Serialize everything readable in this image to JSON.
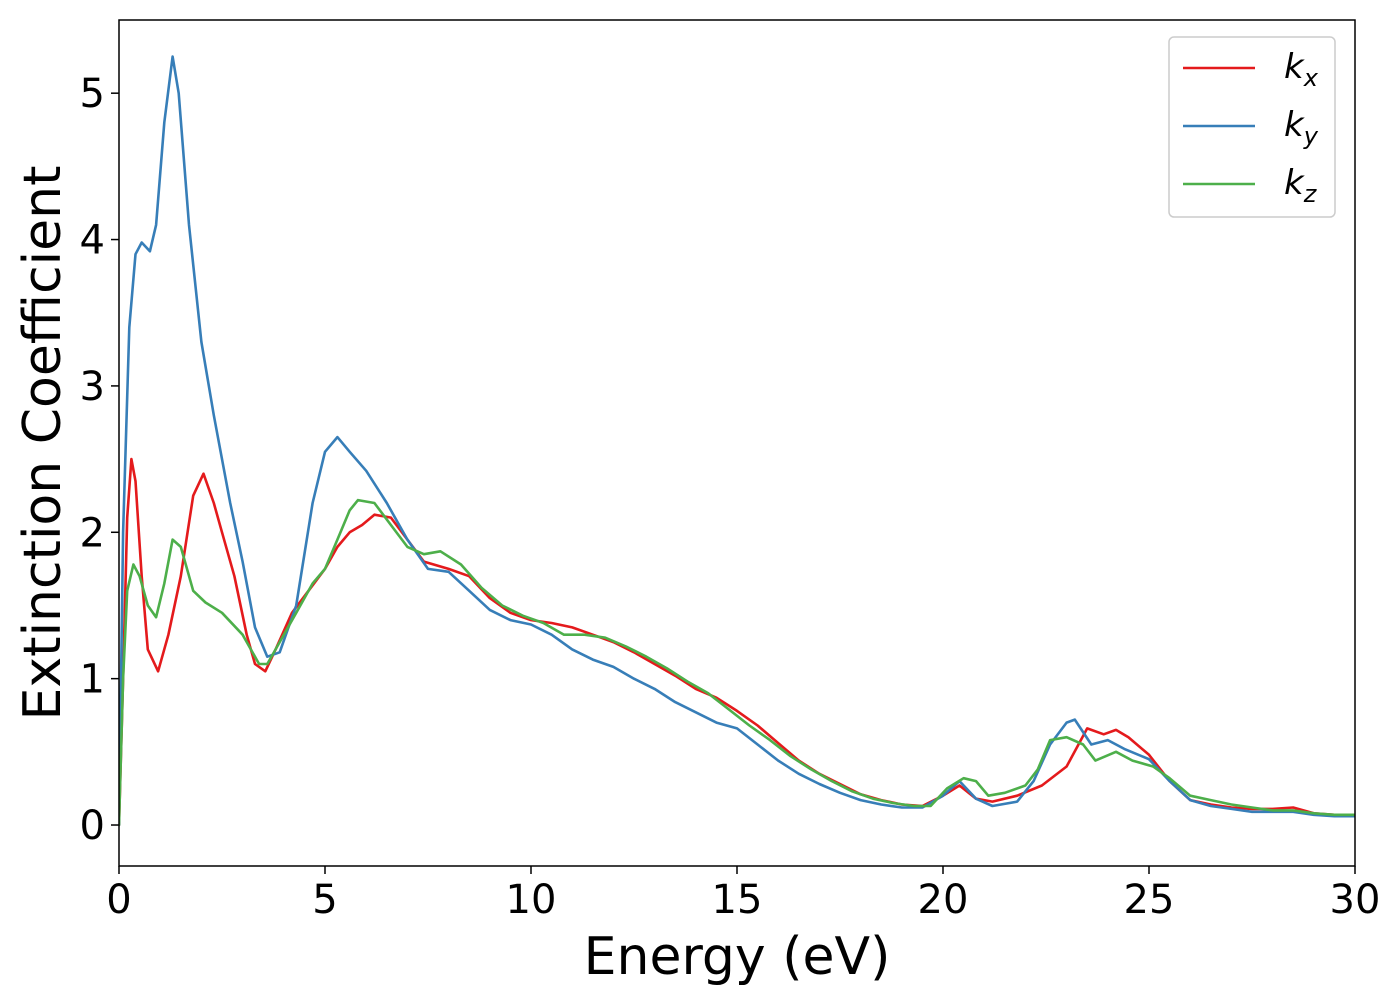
{
  "chart_data": {
    "type": "line",
    "title": "",
    "xlabel": "Energy (eV)",
    "ylabel": "Extinction Coefficient",
    "xlim": [
      0,
      30
    ],
    "ylim": [
      -0.28,
      5.5
    ],
    "xticks": [
      0,
      5,
      10,
      15,
      20,
      25,
      30
    ],
    "yticks": [
      0,
      1,
      2,
      3,
      4,
      5
    ],
    "grid": false,
    "legend_position": "top-right",
    "series": [
      {
        "name": "k",
        "subscript": "x",
        "color": "#e41a1c",
        "points": [
          [
            0,
            0
          ],
          [
            0.1,
            1.0
          ],
          [
            0.2,
            2.1
          ],
          [
            0.3,
            2.5
          ],
          [
            0.4,
            2.35
          ],
          [
            0.55,
            1.7
          ],
          [
            0.7,
            1.2
          ],
          [
            0.95,
            1.05
          ],
          [
            1.2,
            1.3
          ],
          [
            1.5,
            1.7
          ],
          [
            1.8,
            2.25
          ],
          [
            2.05,
            2.4
          ],
          [
            2.3,
            2.2
          ],
          [
            2.5,
            2.0
          ],
          [
            2.8,
            1.7
          ],
          [
            3.1,
            1.3
          ],
          [
            3.3,
            1.1
          ],
          [
            3.55,
            1.05
          ],
          [
            3.8,
            1.2
          ],
          [
            4.2,
            1.45
          ],
          [
            4.6,
            1.6
          ],
          [
            5.0,
            1.75
          ],
          [
            5.3,
            1.9
          ],
          [
            5.6,
            2.0
          ],
          [
            5.9,
            2.05
          ],
          [
            6.2,
            2.12
          ],
          [
            6.6,
            2.1
          ],
          [
            7.0,
            1.95
          ],
          [
            7.4,
            1.8
          ],
          [
            8.0,
            1.75
          ],
          [
            8.5,
            1.7
          ],
          [
            9.0,
            1.55
          ],
          [
            9.5,
            1.45
          ],
          [
            10.0,
            1.4
          ],
          [
            10.5,
            1.38
          ],
          [
            11.0,
            1.35
          ],
          [
            11.5,
            1.3
          ],
          [
            12.0,
            1.25
          ],
          [
            12.5,
            1.18
          ],
          [
            13.0,
            1.1
          ],
          [
            13.5,
            1.02
          ],
          [
            14.0,
            0.93
          ],
          [
            14.5,
            0.87
          ],
          [
            15.0,
            0.78
          ],
          [
            15.5,
            0.68
          ],
          [
            16.0,
            0.56
          ],
          [
            16.5,
            0.44
          ],
          [
            17.0,
            0.35
          ],
          [
            17.5,
            0.28
          ],
          [
            18.0,
            0.21
          ],
          [
            18.5,
            0.17
          ],
          [
            19.0,
            0.14
          ],
          [
            19.5,
            0.13
          ],
          [
            20.0,
            0.2
          ],
          [
            20.4,
            0.27
          ],
          [
            20.8,
            0.18
          ],
          [
            21.2,
            0.16
          ],
          [
            21.8,
            0.2
          ],
          [
            22.4,
            0.27
          ],
          [
            23.0,
            0.4
          ],
          [
            23.5,
            0.66
          ],
          [
            23.9,
            0.62
          ],
          [
            24.2,
            0.65
          ],
          [
            24.5,
            0.6
          ],
          [
            25.0,
            0.48
          ],
          [
            25.5,
            0.3
          ],
          [
            26.0,
            0.17
          ],
          [
            26.5,
            0.14
          ],
          [
            27.0,
            0.12
          ],
          [
            27.5,
            0.11
          ],
          [
            28.0,
            0.11
          ],
          [
            28.5,
            0.12
          ],
          [
            29.0,
            0.08
          ],
          [
            29.5,
            0.07
          ],
          [
            30.0,
            0.07
          ]
        ]
      },
      {
        "name": "k",
        "subscript": "y",
        "color": "#377eb8",
        "points": [
          [
            0,
            0
          ],
          [
            0.1,
            2.0
          ],
          [
            0.25,
            3.4
          ],
          [
            0.4,
            3.9
          ],
          [
            0.55,
            3.98
          ],
          [
            0.75,
            3.92
          ],
          [
            0.9,
            4.1
          ],
          [
            1.1,
            4.8
          ],
          [
            1.3,
            5.25
          ],
          [
            1.45,
            5.0
          ],
          [
            1.7,
            4.1
          ],
          [
            2.0,
            3.3
          ],
          [
            2.3,
            2.8
          ],
          [
            2.7,
            2.2
          ],
          [
            3.0,
            1.8
          ],
          [
            3.3,
            1.35
          ],
          [
            3.6,
            1.15
          ],
          [
            3.9,
            1.18
          ],
          [
            4.3,
            1.5
          ],
          [
            4.7,
            2.2
          ],
          [
            5.0,
            2.55
          ],
          [
            5.3,
            2.65
          ],
          [
            5.6,
            2.55
          ],
          [
            6.0,
            2.42
          ],
          [
            6.5,
            2.2
          ],
          [
            7.0,
            1.95
          ],
          [
            7.5,
            1.75
          ],
          [
            8.0,
            1.73
          ],
          [
            8.5,
            1.6
          ],
          [
            9.0,
            1.47
          ],
          [
            9.5,
            1.4
          ],
          [
            10.0,
            1.37
          ],
          [
            10.5,
            1.3
          ],
          [
            11.0,
            1.2
          ],
          [
            11.5,
            1.13
          ],
          [
            12.0,
            1.08
          ],
          [
            12.5,
            1.0
          ],
          [
            13.0,
            0.93
          ],
          [
            13.5,
            0.84
          ],
          [
            14.0,
            0.77
          ],
          [
            14.5,
            0.7
          ],
          [
            15.0,
            0.66
          ],
          [
            15.5,
            0.55
          ],
          [
            16.0,
            0.44
          ],
          [
            16.5,
            0.35
          ],
          [
            17.0,
            0.28
          ],
          [
            17.5,
            0.22
          ],
          [
            18.0,
            0.17
          ],
          [
            18.5,
            0.14
          ],
          [
            19.0,
            0.12
          ],
          [
            19.5,
            0.12
          ],
          [
            20.0,
            0.2
          ],
          [
            20.4,
            0.3
          ],
          [
            20.8,
            0.18
          ],
          [
            21.2,
            0.13
          ],
          [
            21.8,
            0.16
          ],
          [
            22.2,
            0.3
          ],
          [
            22.6,
            0.55
          ],
          [
            23.0,
            0.7
          ],
          [
            23.2,
            0.72
          ],
          [
            23.6,
            0.55
          ],
          [
            24.0,
            0.58
          ],
          [
            24.4,
            0.52
          ],
          [
            25.0,
            0.45
          ],
          [
            25.5,
            0.3
          ],
          [
            26.0,
            0.17
          ],
          [
            26.5,
            0.13
          ],
          [
            27.0,
            0.11
          ],
          [
            27.5,
            0.09
          ],
          [
            28.0,
            0.09
          ],
          [
            28.5,
            0.09
          ],
          [
            29.0,
            0.07
          ],
          [
            29.5,
            0.06
          ],
          [
            30.0,
            0.06
          ]
        ]
      },
      {
        "name": "k",
        "subscript": "z",
        "color": "#4daf4a",
        "points": [
          [
            0,
            0
          ],
          [
            0.1,
            1.0
          ],
          [
            0.2,
            1.6
          ],
          [
            0.35,
            1.78
          ],
          [
            0.5,
            1.7
          ],
          [
            0.7,
            1.5
          ],
          [
            0.9,
            1.42
          ],
          [
            1.1,
            1.65
          ],
          [
            1.3,
            1.95
          ],
          [
            1.5,
            1.9
          ],
          [
            1.8,
            1.6
          ],
          [
            2.1,
            1.52
          ],
          [
            2.5,
            1.45
          ],
          [
            3.0,
            1.3
          ],
          [
            3.4,
            1.1
          ],
          [
            3.6,
            1.1
          ],
          [
            3.9,
            1.25
          ],
          [
            4.3,
            1.45
          ],
          [
            4.7,
            1.65
          ],
          [
            5.0,
            1.75
          ],
          [
            5.3,
            1.95
          ],
          [
            5.6,
            2.15
          ],
          [
            5.8,
            2.22
          ],
          [
            6.2,
            2.2
          ],
          [
            6.6,
            2.05
          ],
          [
            7.0,
            1.9
          ],
          [
            7.4,
            1.85
          ],
          [
            7.8,
            1.87
          ],
          [
            8.3,
            1.78
          ],
          [
            8.8,
            1.62
          ],
          [
            9.3,
            1.5
          ],
          [
            9.8,
            1.43
          ],
          [
            10.3,
            1.38
          ],
          [
            10.8,
            1.3
          ],
          [
            11.3,
            1.3
          ],
          [
            11.8,
            1.28
          ],
          [
            12.3,
            1.22
          ],
          [
            12.8,
            1.15
          ],
          [
            13.3,
            1.07
          ],
          [
            13.8,
            0.98
          ],
          [
            14.3,
            0.9
          ],
          [
            14.8,
            0.79
          ],
          [
            15.3,
            0.68
          ],
          [
            15.8,
            0.58
          ],
          [
            16.3,
            0.47
          ],
          [
            16.8,
            0.38
          ],
          [
            17.3,
            0.3
          ],
          [
            17.8,
            0.23
          ],
          [
            18.3,
            0.18
          ],
          [
            18.8,
            0.15
          ],
          [
            19.3,
            0.13
          ],
          [
            19.7,
            0.13
          ],
          [
            20.1,
            0.25
          ],
          [
            20.5,
            0.32
          ],
          [
            20.8,
            0.3
          ],
          [
            21.1,
            0.2
          ],
          [
            21.5,
            0.22
          ],
          [
            22.0,
            0.27
          ],
          [
            22.3,
            0.38
          ],
          [
            22.6,
            0.58
          ],
          [
            23.0,
            0.6
          ],
          [
            23.4,
            0.55
          ],
          [
            23.7,
            0.44
          ],
          [
            24.2,
            0.5
          ],
          [
            24.6,
            0.44
          ],
          [
            25.1,
            0.4
          ],
          [
            25.5,
            0.32
          ],
          [
            26.0,
            0.2
          ],
          [
            26.5,
            0.17
          ],
          [
            27.0,
            0.14
          ],
          [
            27.5,
            0.12
          ],
          [
            28.0,
            0.1
          ],
          [
            28.5,
            0.1
          ],
          [
            29.0,
            0.08
          ],
          [
            29.5,
            0.07
          ],
          [
            30.0,
            0.07
          ]
        ]
      }
    ]
  }
}
